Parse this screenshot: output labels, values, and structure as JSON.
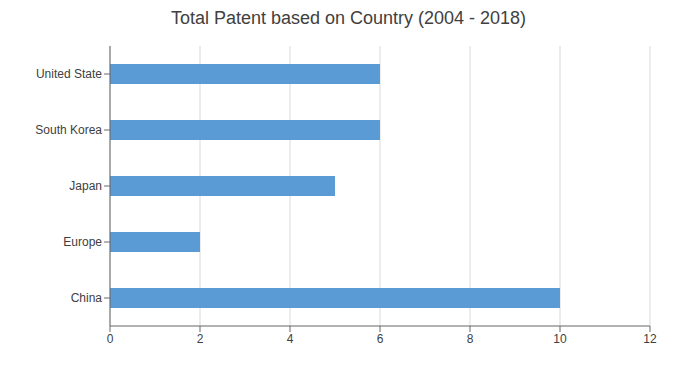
{
  "chart_data": {
    "type": "bar",
    "title": "Total Patent based on Country (2004 - 2018)",
    "categories": [
      "China",
      "Europe",
      "Japan",
      "South Korea",
      "United State"
    ],
    "values": [
      10,
      2,
      5,
      6,
      6
    ],
    "color": "#5b9bd5",
    "orientation": "horizontal",
    "xlim": [
      0,
      12
    ],
    "xticks": [
      0,
      2,
      4,
      6,
      8,
      10,
      12
    ],
    "grid": true
  }
}
